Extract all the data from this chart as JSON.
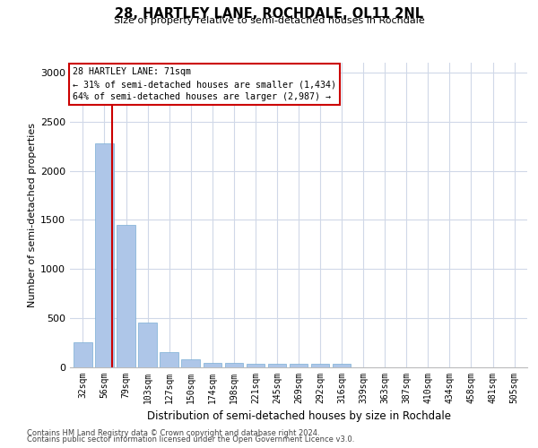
{
  "title1": "28, HARTLEY LANE, ROCHDALE, OL11 2NL",
  "title2": "Size of property relative to semi-detached houses in Rochdale",
  "xlabel": "Distribution of semi-detached houses by size in Rochdale",
  "ylabel": "Number of semi-detached properties",
  "footer1": "Contains HM Land Registry data © Crown copyright and database right 2024.",
  "footer2": "Contains public sector information licensed under the Open Government Licence v3.0.",
  "categories": [
    "32sqm",
    "56sqm",
    "79sqm",
    "103sqm",
    "127sqm",
    "150sqm",
    "174sqm",
    "198sqm",
    "221sqm",
    "245sqm",
    "269sqm",
    "292sqm",
    "316sqm",
    "339sqm",
    "363sqm",
    "387sqm",
    "410sqm",
    "434sqm",
    "458sqm",
    "481sqm",
    "505sqm"
  ],
  "values": [
    255,
    2280,
    1450,
    460,
    155,
    85,
    50,
    45,
    40,
    38,
    35,
    34,
    35,
    0,
    0,
    0,
    0,
    0,
    0,
    0,
    0
  ],
  "bar_color": "#aec6e8",
  "bar_edge_color": "#7aadd4",
  "grid_color": "#d0d8e8",
  "property_label": "28 HARTLEY LANE: 71sqm",
  "pct_smaller": 31,
  "count_smaller": "1,434",
  "pct_larger": 64,
  "count_larger": "2,987",
  "annotation_box_color": "#ffffff",
  "annotation_box_edge": "#cc0000",
  "vline_color": "#cc0000",
  "vline_position": 1.35,
  "ylim": [
    0,
    3100
  ],
  "yticks": [
    0,
    500,
    1000,
    1500,
    2000,
    2500,
    3000
  ]
}
